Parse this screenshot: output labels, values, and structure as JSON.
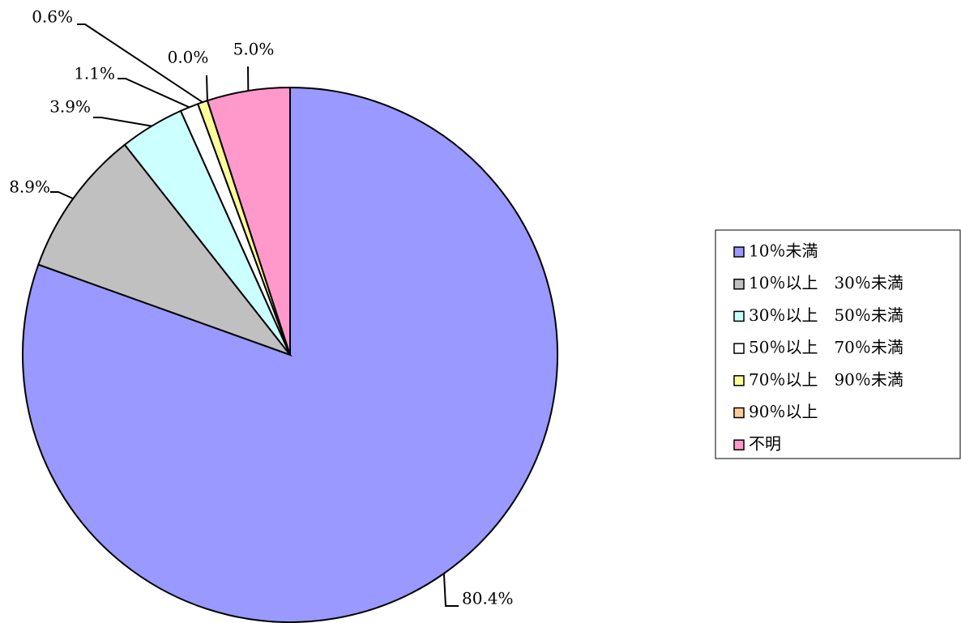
{
  "chart_data": {
    "type": "pie",
    "categories": [
      "10％未満",
      "10％以上　30％未満",
      "30％以上　50％未満",
      "50％以上　70％未満",
      "70％以上　90％未満",
      "90％以上",
      "不明"
    ],
    "values": [
      80.4,
      8.9,
      3.9,
      1.1,
      0.6,
      0.0,
      5.0
    ],
    "value_labels": [
      "80.4%",
      "8.9%",
      "3.9%",
      "1.1%",
      "0.6%",
      "0.0%",
      "5.0%"
    ],
    "colors": [
      "#9999ff",
      "#c0c0c0",
      "#ccffff",
      "#ffffff",
      "#ffff99",
      "#ffcc99",
      "#ff99cc"
    ],
    "legend": "right"
  }
}
